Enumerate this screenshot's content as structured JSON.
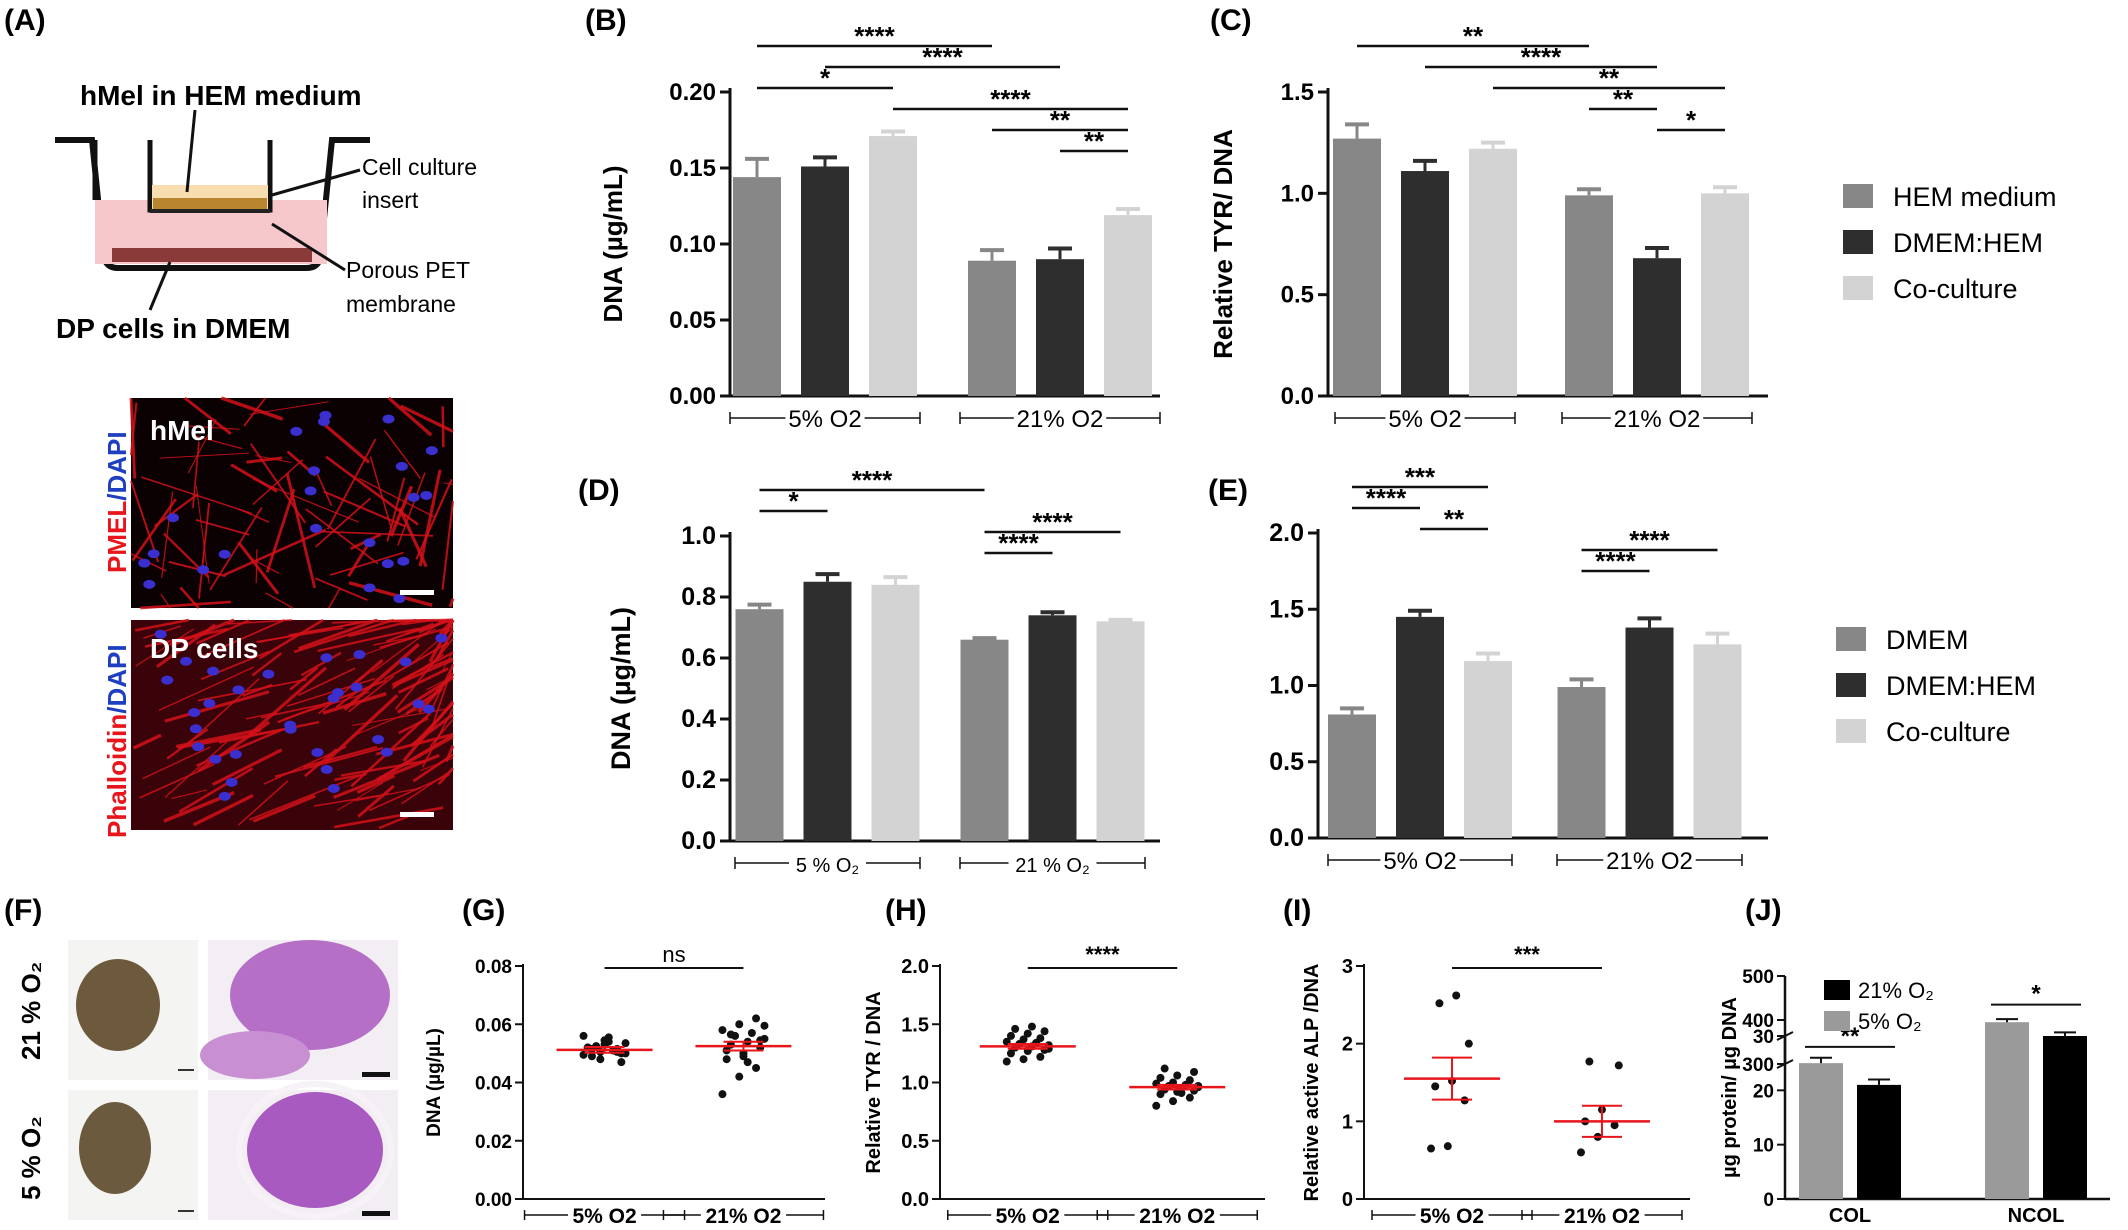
{
  "panel_letters": [
    "(A)",
    "(B)",
    "(C)",
    "(D)",
    "(E)",
    "(F)",
    "(G)",
    "(H)",
    "(I)",
    "(J)"
  ],
  "colors": {
    "light_gray": "#878787",
    "dark_gray": "#2e2e2e",
    "pale_gray": "#d3d3d3",
    "red_line": "#e8151b",
    "micro_red": "#d41119",
    "micro_blue": "#3b2fd0",
    "he_purple": "#b56fc7"
  },
  "panel_a": {
    "hmel_label": "hMel in HEM medium",
    "insert_label_1": "Cell culture",
    "insert_label_2": "insert",
    "membrane_label_1": "Porous PET",
    "membrane_label_2": "membrane",
    "dp_label": "DP cells in DMEM",
    "micro_top_inset": "hMel",
    "micro_top_side_a": "PMEL",
    "micro_top_side_b": "/DAPI",
    "micro_bottom_inset": "DP cells",
    "micro_bottom_side_a": "Phalloidin",
    "micro_bottom_side_b": "/DAPI"
  },
  "panel_f": {
    "row_labels": [
      "21 % O₂",
      "5 % O₂"
    ]
  },
  "legends": {
    "bc": [
      "HEM medium",
      "DMEM:HEM",
      "Co-culture"
    ],
    "de": [
      "DMEM",
      "DMEM:HEM",
      "Co-culture"
    ]
  },
  "chart_data": [
    {
      "panel": "B",
      "type": "bar",
      "ylabel": "DNA (µg/mL)",
      "ylim": [
        0,
        0.2
      ],
      "yticks": [
        "0.00",
        "0.05",
        "0.10",
        "0.15",
        "0.20"
      ],
      "groups": [
        "5% O2",
        "21% O2"
      ],
      "series": [
        {
          "name": "HEM medium",
          "values": [
            0.144,
            0.089
          ],
          "errors": [
            0.012,
            0.007
          ]
        },
        {
          "name": "DMEM:HEM",
          "values": [
            0.151,
            0.09
          ],
          "errors": [
            0.006,
            0.007
          ]
        },
        {
          "name": "Co-culture",
          "values": [
            0.171,
            0.119
          ],
          "errors": [
            0.003,
            0.004
          ]
        }
      ],
      "significance": [
        {
          "label": "****",
          "from": [
            0,
            0
          ],
          "to": [
            1,
            0
          ]
        },
        {
          "label": "****",
          "from": [
            0,
            1
          ],
          "to": [
            1,
            1
          ]
        },
        {
          "label": "*",
          "from": [
            0,
            0
          ],
          "to": [
            0,
            2
          ]
        },
        {
          "label": "****",
          "from": [
            0,
            2
          ],
          "to": [
            1,
            2
          ]
        },
        {
          "label": "**",
          "from": [
            1,
            0
          ],
          "to": [
            1,
            2
          ]
        },
        {
          "label": "**",
          "from": [
            1,
            1
          ],
          "to": [
            1,
            2
          ]
        }
      ]
    },
    {
      "panel": "C",
      "type": "bar",
      "ylabel": "Relative TYR/ DNA",
      "ylim": [
        0,
        1.5
      ],
      "yticks": [
        "0.0",
        "0.5",
        "1.0",
        "1.5"
      ],
      "groups": [
        "5% O2",
        "21% O2"
      ],
      "series": [
        {
          "name": "HEM medium",
          "values": [
            1.27,
            0.99
          ],
          "errors": [
            0.07,
            0.03
          ]
        },
        {
          "name": "DMEM:HEM",
          "values": [
            1.11,
            0.68
          ],
          "errors": [
            0.05,
            0.05
          ]
        },
        {
          "name": "Co-culture",
          "values": [
            1.22,
            1.0
          ],
          "errors": [
            0.03,
            0.03
          ]
        }
      ],
      "significance": [
        {
          "label": "**",
          "from": [
            0,
            0
          ],
          "to": [
            1,
            0
          ]
        },
        {
          "label": "****",
          "from": [
            0,
            1
          ],
          "to": [
            1,
            1
          ]
        },
        {
          "label": "**",
          "from": [
            0,
            2
          ],
          "to": [
            1,
            2
          ]
        },
        {
          "label": "**",
          "from": [
            1,
            0
          ],
          "to": [
            1,
            1
          ]
        },
        {
          "label": "*",
          "from": [
            1,
            1
          ],
          "to": [
            1,
            2
          ]
        }
      ]
    },
    {
      "panel": "D",
      "type": "bar",
      "ylabel": "DNA (µg/mL)",
      "ylim": [
        0,
        1.0
      ],
      "yticks": [
        "0.0",
        "0.2",
        "0.4",
        "0.6",
        "0.8",
        "1.0"
      ],
      "groups": [
        "5 % O₂",
        "21 % O₂"
      ],
      "series": [
        {
          "name": "DMEM",
          "values": [
            0.76,
            0.66
          ],
          "errors": [
            0.015,
            0.005
          ]
        },
        {
          "name": "DMEM:HEM",
          "values": [
            0.85,
            0.74
          ],
          "errors": [
            0.025,
            0.01
          ]
        },
        {
          "name": "Co-culture",
          "values": [
            0.84,
            0.72
          ],
          "errors": [
            0.025,
            0.005
          ]
        }
      ],
      "significance": [
        {
          "label": "****",
          "from": [
            0,
            0
          ],
          "to": [
            1,
            0
          ]
        },
        {
          "label": "*",
          "from": [
            0,
            0
          ],
          "to": [
            0,
            1
          ]
        },
        {
          "label": "****",
          "from": [
            1,
            0
          ],
          "to": [
            1,
            2
          ]
        },
        {
          "label": "****",
          "from": [
            1,
            0
          ],
          "to": [
            1,
            1
          ]
        }
      ]
    },
    {
      "panel": "E",
      "type": "bar",
      "ylabel": "",
      "ylim": [
        0,
        2.0
      ],
      "yticks": [
        "0.0",
        "0.5",
        "1.0",
        "1.5",
        "2.0"
      ],
      "groups": [
        "5% O2",
        "21% O2"
      ],
      "series": [
        {
          "name": "DMEM",
          "values": [
            0.81,
            0.99
          ],
          "errors": [
            0.04,
            0.05
          ]
        },
        {
          "name": "DMEM:HEM",
          "values": [
            1.45,
            1.38
          ],
          "errors": [
            0.04,
            0.06
          ]
        },
        {
          "name": "Co-culture",
          "values": [
            1.16,
            1.27
          ],
          "errors": [
            0.05,
            0.07
          ]
        }
      ],
      "significance": [
        {
          "label": "***",
          "from": [
            0,
            0
          ],
          "to": [
            0,
            2
          ]
        },
        {
          "label": "****",
          "from": [
            0,
            0
          ],
          "to": [
            0,
            1
          ]
        },
        {
          "label": "**",
          "from": [
            0,
            1
          ],
          "to": [
            0,
            2
          ]
        },
        {
          "label": "****",
          "from": [
            1,
            0
          ],
          "to": [
            1,
            2
          ]
        },
        {
          "label": "****",
          "from": [
            1,
            0
          ],
          "to": [
            1,
            1
          ]
        }
      ]
    },
    {
      "panel": "G",
      "type": "scatter",
      "ylabel": "DNA (µg/µL)",
      "ylim": [
        0,
        0.08
      ],
      "yticks": [
        "0.00",
        "0.02",
        "0.04",
        "0.06",
        "0.08"
      ],
      "groups": [
        "5% O2",
        "21% O2"
      ],
      "means": [
        0.0512,
        0.0525
      ],
      "sem": [
        0.001,
        0.0015
      ],
      "points": [
        [
          0.0495,
          0.0505,
          0.0515,
          0.052,
          0.053,
          0.05,
          0.049,
          0.054,
          0.0535,
          0.0525,
          0.051,
          0.056,
          0.048,
          0.0505,
          0.052,
          0.0545,
          0.047,
          0.0515,
          0.0555,
          0.05
        ],
        [
          0.036,
          0.042,
          0.045,
          0.048,
          0.05,
          0.052,
          0.053,
          0.054,
          0.055,
          0.056,
          0.057,
          0.058,
          0.06,
          0.062,
          0.051,
          0.049,
          0.0545,
          0.0565,
          0.047,
          0.0595
        ]
      ],
      "significance": [
        {
          "label": "ns",
          "from": 0,
          "to": 1
        }
      ]
    },
    {
      "panel": "H",
      "type": "scatter",
      "ylabel": "Relative TYR / DNA",
      "ylim": [
        0,
        2.0
      ],
      "yticks": [
        "0.0",
        "0.5",
        "1.0",
        "1.5",
        "2.0"
      ],
      "groups": [
        "5% O2",
        "21% O2"
      ],
      "means": [
        1.31,
        0.96
      ],
      "sem": [
        0.02,
        0.02
      ],
      "points": [
        [
          1.18,
          1.2,
          1.22,
          1.25,
          1.27,
          1.28,
          1.3,
          1.31,
          1.32,
          1.33,
          1.34,
          1.35,
          1.37,
          1.38,
          1.4,
          1.42,
          1.44,
          1.46,
          1.48,
          1.29
        ],
        [
          0.8,
          0.84,
          0.87,
          0.9,
          0.92,
          0.93,
          0.94,
          0.95,
          0.96,
          0.97,
          0.98,
          0.99,
          1.0,
          1.02,
          1.04,
          1.06,
          1.09,
          1.12,
          0.91,
          0.97
        ]
      ],
      "significance": [
        {
          "label": "****",
          "from": 0,
          "to": 1
        }
      ]
    },
    {
      "panel": "I",
      "type": "scatter",
      "ylabel": "Relative active ALP /DNA",
      "ylim": [
        0,
        3
      ],
      "yticks": [
        "0",
        "1",
        "2",
        "3"
      ],
      "groups": [
        "5% O2",
        "21% O2"
      ],
      "means": [
        1.55,
        1.0
      ],
      "sem": [
        0.27,
        0.2
      ],
      "points": [
        [
          0.65,
          0.68,
          1.27,
          1.45,
          1.52,
          2.0,
          2.52,
          2.62
        ],
        [
          0.6,
          0.8,
          0.95,
          1.0,
          1.15,
          1.72,
          1.77
        ]
      ],
      "significance": [
        {
          "label": "***",
          "from": 0,
          "to": 1
        }
      ]
    },
    {
      "panel": "J",
      "type": "bar",
      "ylabel": "µg protein/ µg DNA",
      "axis_break": [
        30,
        300
      ],
      "yticks": [
        "0",
        "10",
        "20",
        "30",
        "300",
        "400",
        "500"
      ],
      "categories": [
        "COL",
        "NCOL"
      ],
      "series": [
        {
          "name": "5% O₂",
          "values": [
            25,
            395
          ],
          "errors": [
            1,
            7
          ]
        },
        {
          "name": "21% O₂",
          "values": [
            21,
            362
          ],
          "errors": [
            1,
            10
          ]
        }
      ],
      "significance": [
        {
          "label": "**",
          "category": 0
        },
        {
          "label": "*",
          "category": 1
        }
      ]
    }
  ]
}
